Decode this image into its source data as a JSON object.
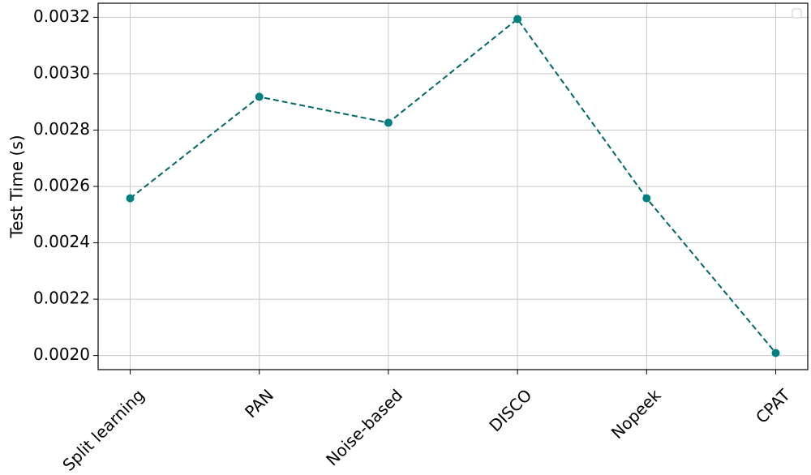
{
  "chart_data": {
    "type": "line",
    "y_label": "Test Time (s)",
    "categories": [
      "Split learning",
      "PAN",
      "Noise-based",
      "DISCO",
      "Nopeek",
      "CPAT"
    ],
    "series": [
      {
        "color": "#006666",
        "marker_color": "#008080",
        "values": [
          0.002558,
          0.002918,
          0.002826,
          0.003194,
          0.002558,
          0.002009
        ]
      }
    ],
    "ylim": [
      0.00195,
      0.00325
    ],
    "yticks": [
      {
        "value": 0.002,
        "label": "0.0020"
      },
      {
        "value": 0.0022,
        "label": "0.0022"
      },
      {
        "value": 0.0024,
        "label": "0.0024"
      },
      {
        "value": 0.0026,
        "label": "0.0026"
      },
      {
        "value": 0.0028,
        "label": "0.0028"
      },
      {
        "value": 0.003,
        "label": "0.0030"
      },
      {
        "value": 0.0032,
        "label": "0.0032"
      }
    ],
    "grid": true
  }
}
